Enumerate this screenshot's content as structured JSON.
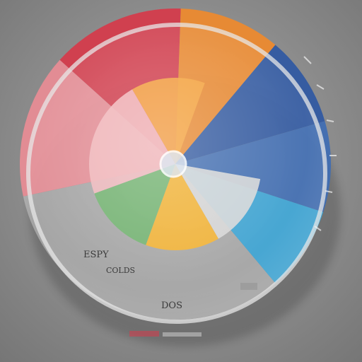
{
  "wheel": {
    "outer_segments": [
      {
        "name": "red",
        "color": "#d63a4a"
      },
      {
        "name": "orange",
        "color": "#ef8a2c"
      },
      {
        "name": "navy",
        "color": "#2f58a3"
      },
      {
        "name": "blue",
        "color": "#3e6db4"
      },
      {
        "name": "cyan",
        "color": "#3aa6d8"
      },
      {
        "name": "grey",
        "color": "#c9c9c9"
      },
      {
        "name": "pink",
        "color": "#e98c95"
      }
    ],
    "inner_segments": [
      {
        "name": "inner-orange",
        "color": "#f4a43e"
      },
      {
        "name": "inner-pink",
        "color": "#f1b7bb"
      },
      {
        "name": "inner-green",
        "color": "#6db26a"
      },
      {
        "name": "inner-yellow",
        "color": "#f7b32a"
      },
      {
        "name": "inner-grey",
        "color": "#d7d7d7"
      }
    ],
    "labels": {
      "left": "ESPY",
      "middle": "COLDS",
      "bottom": "DOS"
    }
  }
}
